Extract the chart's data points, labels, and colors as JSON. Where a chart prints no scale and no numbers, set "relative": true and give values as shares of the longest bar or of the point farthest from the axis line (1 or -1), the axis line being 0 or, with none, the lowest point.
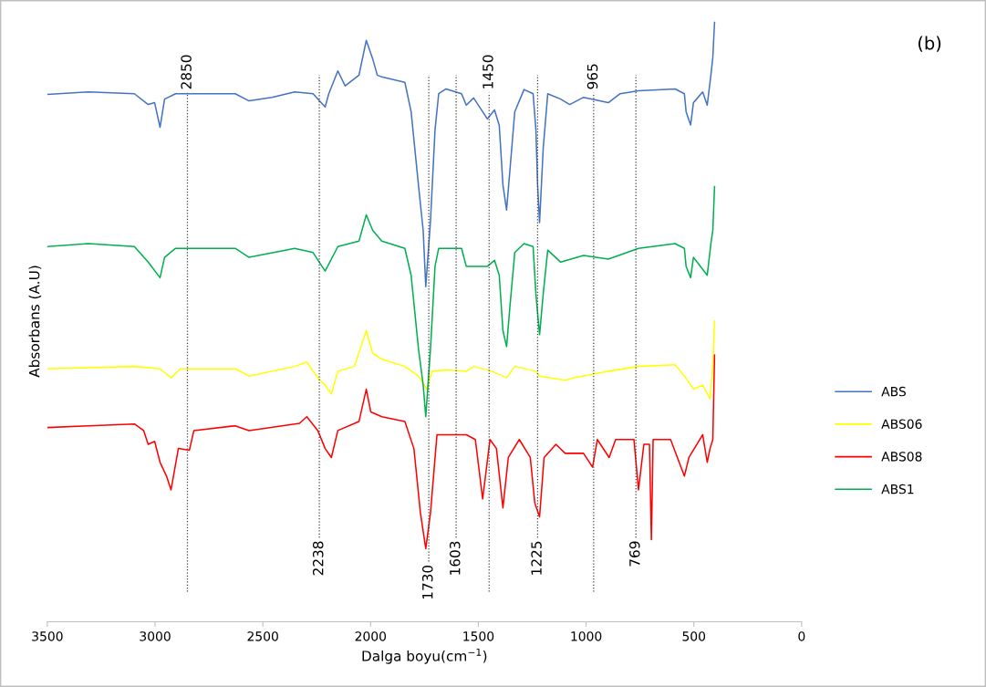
{
  "chart_data": {
    "type": "line",
    "relative": true,
    "xlabel": "Dalga boyu(cm$^{−1}$)",
    "ylabel": "Absorbans (A.U)",
    "annotations": [
      "(b)"
    ],
    "xlim": [
      3500,
      0
    ],
    "xticks": [
      3500,
      3000,
      2500,
      2000,
      1500,
      1000,
      500,
      0
    ],
    "grid": false,
    "legend": "right",
    "tick_labels": "x",
    "ref_lines": [
      {
        "axis": "x",
        "value": 2850,
        "label": "2850",
        "color": "#404040",
        "line_style": "dotted"
      },
      {
        "axis": "x",
        "value": 2238,
        "label": "2238",
        "color": "#404040",
        "line_style": "dotted"
      },
      {
        "axis": "x",
        "value": 1730,
        "label": "1730",
        "color": "#404040",
        "line_style": "dotted"
      },
      {
        "axis": "x",
        "value": 1603,
        "label": "1603",
        "color": "#404040",
        "line_style": "dotted"
      },
      {
        "axis": "x",
        "value": 1450,
        "label": "1450",
        "color": "#404040",
        "line_style": "dotted"
      },
      {
        "axis": "x",
        "value": 1225,
        "label": "1225",
        "color": "#404040",
        "line_style": "dotted"
      },
      {
        "axis": "x",
        "value": 965,
        "label": "965",
        "color": "#404040",
        "line_style": "dotted"
      },
      {
        "axis": "x",
        "value": 769,
        "label": "769",
        "color": "#404040",
        "line_style": "dotted"
      }
    ],
    "series": [
      {
        "name": "ABS",
        "color": "#4472c4",
        "x": [
          3500,
          3309,
          3096,
          3032,
          3002,
          2977,
          2956,
          2905,
          2628,
          2564,
          2458,
          2352,
          2267,
          2211,
          2194,
          2152,
          2118,
          2054,
          2020,
          1990,
          1969,
          1948,
          1841,
          1812,
          1778,
          1756,
          1744,
          1722,
          1701,
          1684,
          1650,
          1578,
          1556,
          1522,
          1458,
          1425,
          1403,
          1386,
          1369,
          1352,
          1331,
          1288,
          1246,
          1233,
          1225,
          1216,
          1199,
          1178,
          1118,
          1076,
          1012,
          897,
          842,
          757,
          587,
          544,
          536,
          515,
          502,
          459,
          438,
          421,
          412,
          404
        ],
        "values": [
          0.88,
          0.884,
          0.881,
          0.863,
          0.866,
          0.825,
          0.872,
          0.881,
          0.881,
          0.869,
          0.875,
          0.884,
          0.881,
          0.859,
          0.881,
          0.919,
          0.894,
          0.912,
          0.97,
          0.939,
          0.912,
          0.909,
          0.9,
          0.851,
          0.729,
          0.653,
          0.559,
          0.669,
          0.821,
          0.881,
          0.889,
          0.881,
          0.862,
          0.874,
          0.839,
          0.854,
          0.828,
          0.729,
          0.687,
          0.76,
          0.851,
          0.888,
          0.881,
          0.821,
          0.729,
          0.666,
          0.79,
          0.881,
          0.872,
          0.863,
          0.875,
          0.866,
          0.881,
          0.886,
          0.889,
          0.881,
          0.851,
          0.829,
          0.866,
          0.884,
          0.862,
          0.912,
          0.942,
          1.0
        ]
      },
      {
        "name": "ABS06",
        "color": "#ffff00",
        "x": [
          3500,
          3096,
          2977,
          2926,
          2883,
          2628,
          2564,
          2352,
          2296,
          2245,
          2211,
          2182,
          2152,
          2075,
          2020,
          1990,
          1948,
          1841,
          1778,
          1739,
          1714,
          1650,
          1556,
          1522,
          1437,
          1369,
          1331,
          1233,
          1216,
          1097,
          1055,
          897,
          757,
          587,
          544,
          502,
          459,
          425,
          412,
          404
        ],
        "values": [
          0.422,
          0.426,
          0.422,
          0.407,
          0.422,
          0.422,
          0.41,
          0.426,
          0.433,
          0.407,
          0.395,
          0.38,
          0.418,
          0.426,
          0.486,
          0.448,
          0.438,
          0.426,
          0.41,
          0.388,
          0.418,
          0.42,
          0.418,
          0.426,
          0.418,
          0.407,
          0.426,
          0.418,
          0.41,
          0.403,
          0.407,
          0.418,
          0.426,
          0.429,
          0.41,
          0.388,
          0.395,
          0.372,
          0.426,
          0.502
        ]
      },
      {
        "name": "ABS08",
        "color": "#ff0000",
        "x": [
          3500,
          3309,
          3096,
          3053,
          3032,
          3002,
          2977,
          2947,
          2926,
          2892,
          2841,
          2820,
          2628,
          2564,
          2330,
          2296,
          2245,
          2211,
          2182,
          2152,
          2054,
          2020,
          1999,
          1948,
          1841,
          1799,
          1769,
          1744,
          1722,
          1692,
          1650,
          1556,
          1514,
          1480,
          1446,
          1416,
          1386,
          1361,
          1310,
          1259,
          1238,
          1216,
          1195,
          1140,
          1097,
          1012,
          970,
          948,
          893,
          863,
          778,
          757,
          732,
          706,
          697,
          689,
          608,
          544,
          523,
          459,
          438,
          425,
          412,
          404
        ],
        "values": [
          0.324,
          0.327,
          0.33,
          0.319,
          0.296,
          0.301,
          0.266,
          0.243,
          0.22,
          0.289,
          0.286,
          0.319,
          0.327,
          0.319,
          0.331,
          0.342,
          0.319,
          0.289,
          0.274,
          0.319,
          0.334,
          0.388,
          0.35,
          0.342,
          0.334,
          0.289,
          0.182,
          0.122,
          0.182,
          0.312,
          0.312,
          0.312,
          0.304,
          0.205,
          0.304,
          0.289,
          0.19,
          0.274,
          0.304,
          0.274,
          0.198,
          0.175,
          0.274,
          0.296,
          0.281,
          0.281,
          0.258,
          0.304,
          0.274,
          0.304,
          0.304,
          0.22,
          0.296,
          0.296,
          0.137,
          0.304,
          0.304,
          0.243,
          0.274,
          0.312,
          0.266,
          0.289,
          0.304,
          0.445
        ]
      },
      {
        "name": "ABS1",
        "color": "#00b050",
        "x": [
          3500,
          3309,
          3096,
          3032,
          2977,
          2956,
          2905,
          2628,
          2564,
          2352,
          2267,
          2211,
          2152,
          2054,
          2020,
          1990,
          1948,
          1841,
          1812,
          1778,
          1756,
          1744,
          1722,
          1701,
          1684,
          1578,
          1556,
          1458,
          1425,
          1403,
          1386,
          1369,
          1352,
          1331,
          1288,
          1246,
          1233,
          1216,
          1199,
          1178,
          1118,
          1012,
          897,
          757,
          587,
          544,
          536,
          515,
          502,
          438,
          421,
          412,
          404
        ],
        "values": [
          0.626,
          0.631,
          0.626,
          0.6,
          0.574,
          0.608,
          0.623,
          0.623,
          0.608,
          0.623,
          0.616,
          0.585,
          0.626,
          0.635,
          0.679,
          0.653,
          0.635,
          0.623,
          0.578,
          0.456,
          0.395,
          0.342,
          0.456,
          0.593,
          0.623,
          0.623,
          0.593,
          0.593,
          0.603,
          0.578,
          0.486,
          0.459,
          0.532,
          0.616,
          0.631,
          0.626,
          0.547,
          0.479,
          0.547,
          0.62,
          0.6,
          0.611,
          0.605,
          0.623,
          0.631,
          0.623,
          0.593,
          0.574,
          0.608,
          0.578,
          0.631,
          0.653,
          0.726
        ]
      }
    ]
  }
}
